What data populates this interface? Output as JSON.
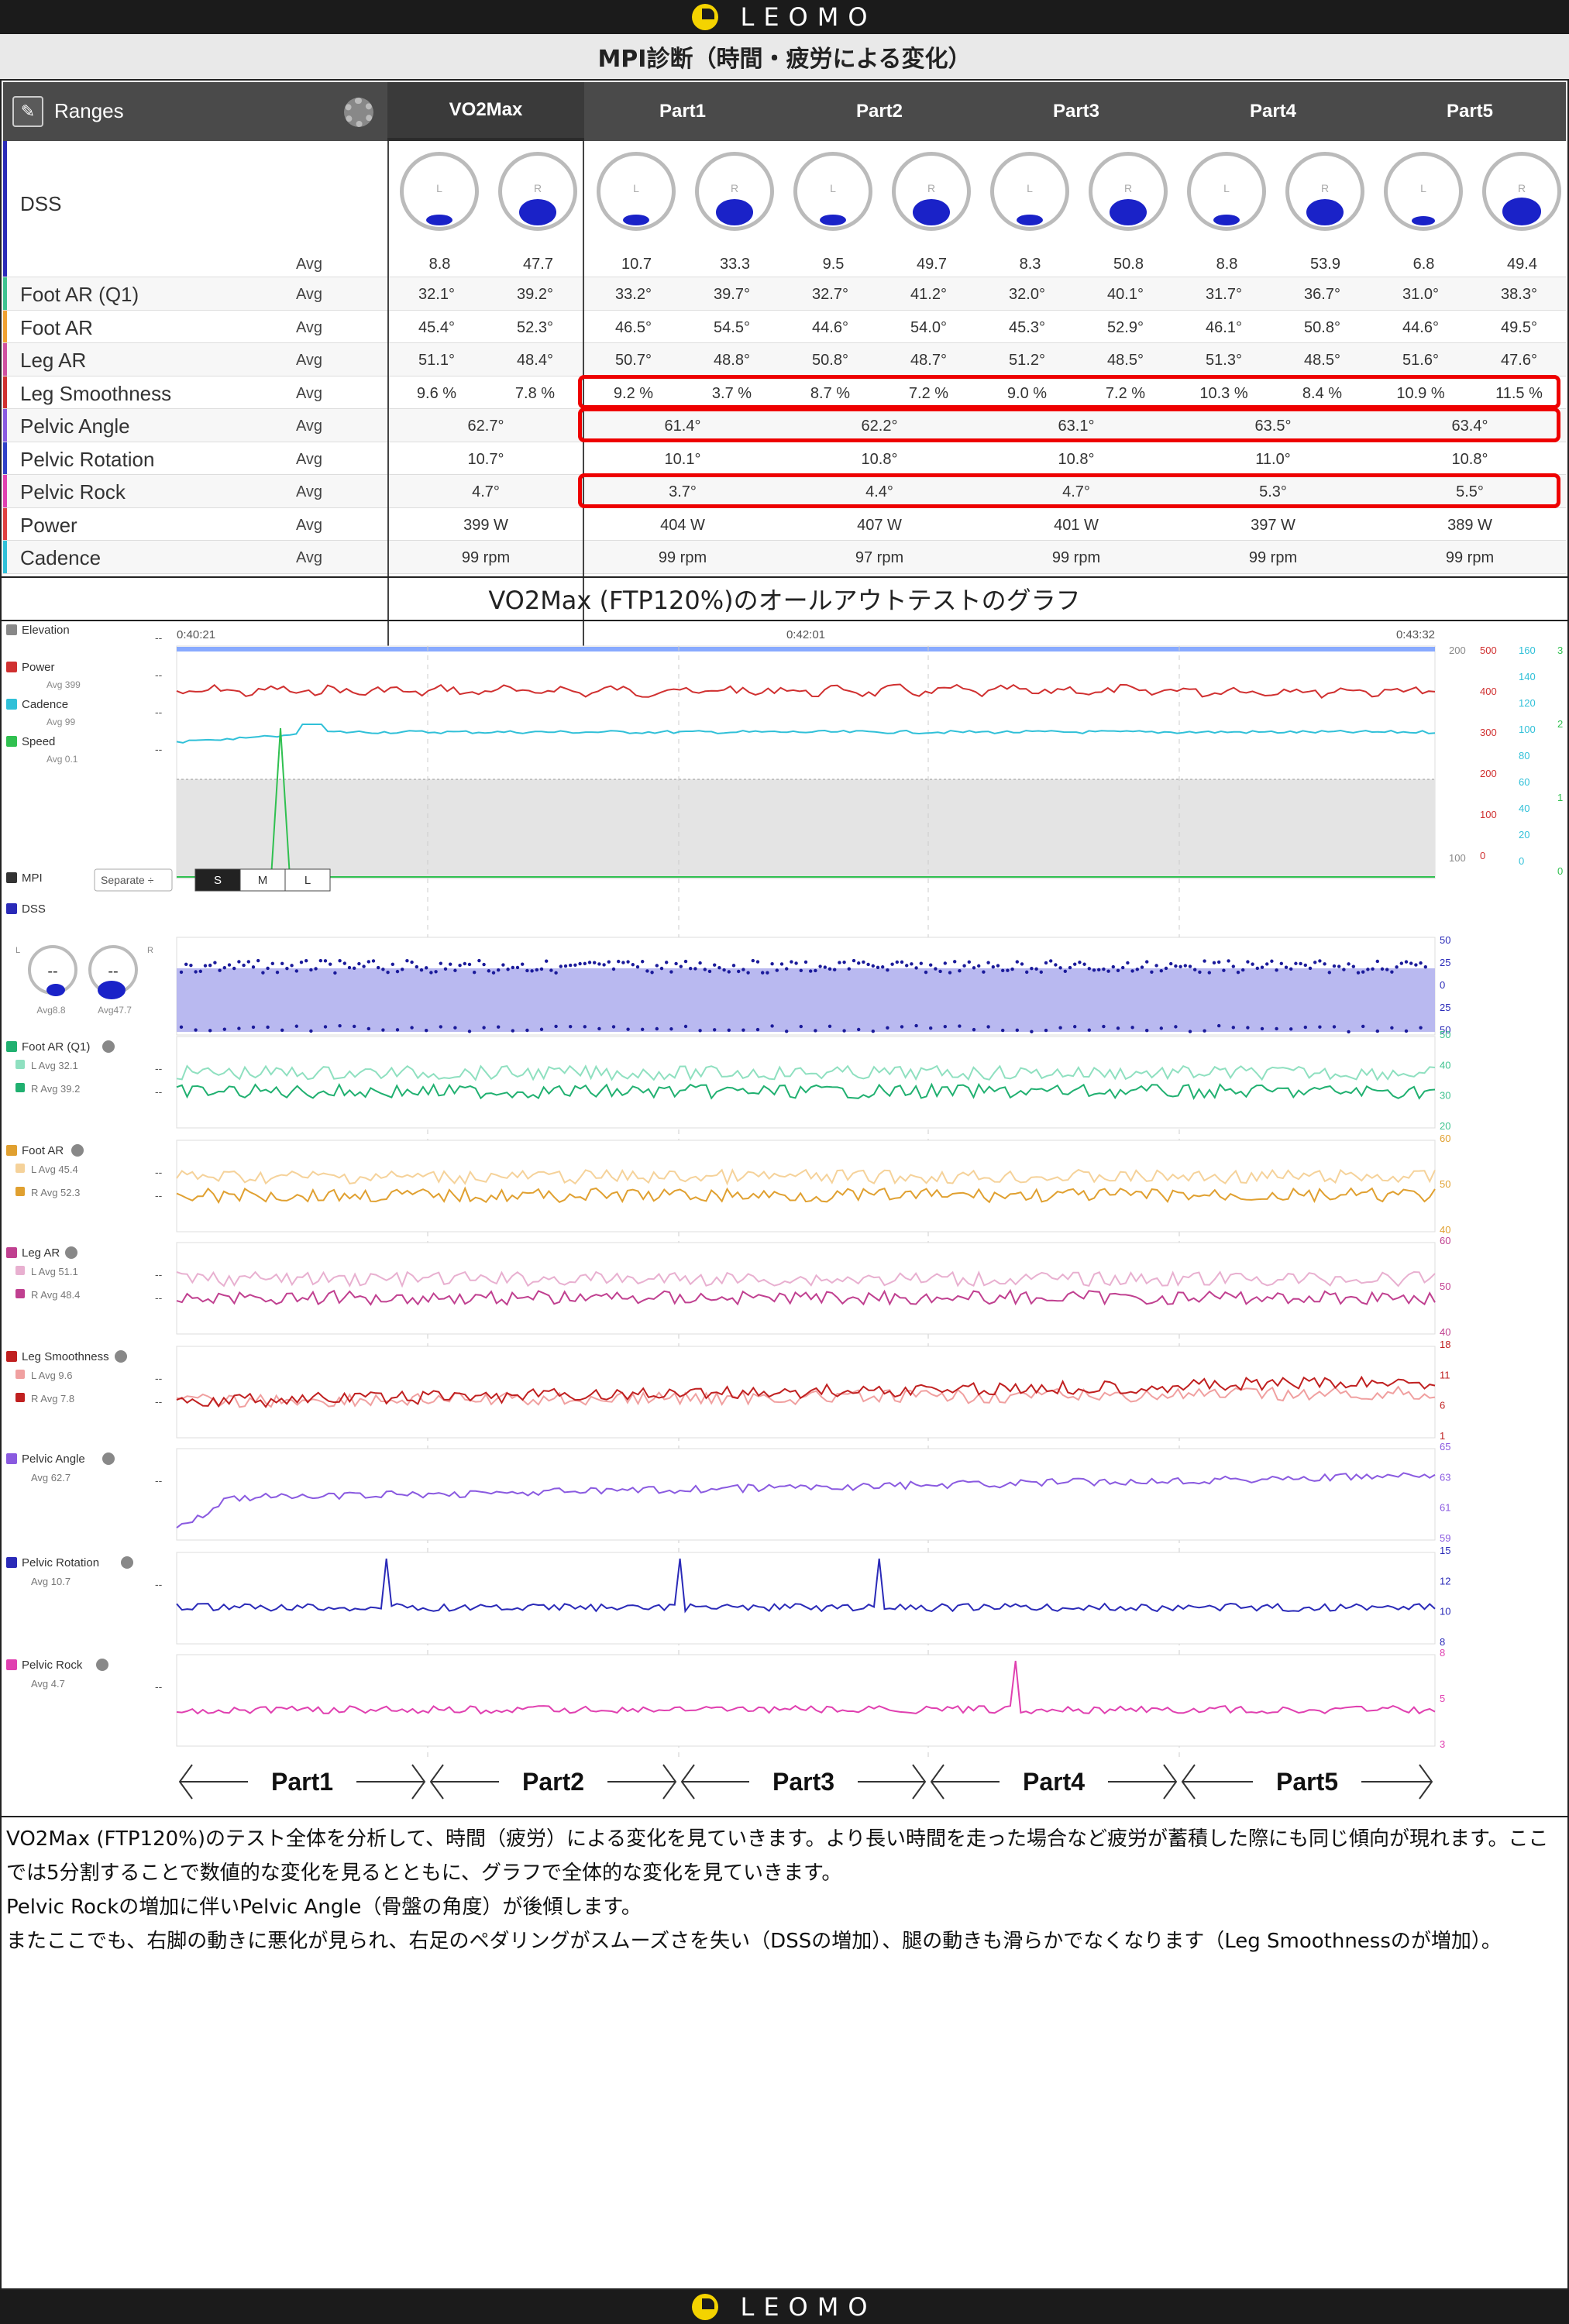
{
  "brand": {
    "name": "LEOMO"
  },
  "title": "MPI診断（時間・疲労による変化）",
  "table": {
    "ranges_label": "Ranges",
    "columns": [
      "VO2Max",
      "Part1",
      "Part2",
      "Part3",
      "Part4",
      "Part5"
    ],
    "dss": {
      "label": "DSS",
      "avg_label": "Avg",
      "dial_L": "L",
      "dial_R": "R",
      "values": [
        "8.8",
        "47.7",
        "10.7",
        "33.3",
        "9.5",
        "49.7",
        "8.3",
        "50.8",
        "8.8",
        "53.9",
        "6.8",
        "49.4"
      ]
    },
    "rows": [
      {
        "label": "Foot AR (Q1)",
        "avg": "Avg",
        "color": "#3ec28f",
        "values": [
          "32.1°",
          "39.2°",
          "33.2°",
          "39.7°",
          "32.7°",
          "41.2°",
          "32.0°",
          "40.1°",
          "31.7°",
          "36.7°",
          "31.0°",
          "38.3°"
        ]
      },
      {
        "label": "Foot AR",
        "avg": "Avg",
        "color": "#f0a030",
        "values": [
          "45.4°",
          "52.3°",
          "46.5°",
          "54.5°",
          "44.6°",
          "54.0°",
          "45.3°",
          "52.9°",
          "46.1°",
          "50.8°",
          "44.6°",
          "49.5°"
        ]
      },
      {
        "label": "Leg AR",
        "avg": "Avg",
        "color": "#d050a0",
        "values": [
          "51.1°",
          "48.4°",
          "50.7°",
          "48.8°",
          "50.8°",
          "48.7°",
          "51.2°",
          "48.5°",
          "51.3°",
          "48.5°",
          "51.6°",
          "47.6°"
        ]
      },
      {
        "label": "Leg Smoothness",
        "avg": "Avg",
        "color": "#d03030",
        "values": [
          "9.6 %",
          "7.8 %",
          "9.2 %",
          "3.7 %",
          "8.7 %",
          "7.2 %",
          "9.0 %",
          "7.2 %",
          "10.3 %",
          "8.4 %",
          "10.9 %",
          "11.5 %"
        ]
      },
      {
        "label": "Pelvic Angle",
        "avg": "Avg",
        "color": "#8a5ae0",
        "values": [
          "62.7°",
          "61.4°",
          "62.2°",
          "63.1°",
          "63.5°",
          "63.4°"
        ]
      },
      {
        "label": "Pelvic Rotation",
        "avg": "Avg",
        "color": "#3040c8",
        "values": [
          "10.7°",
          "10.1°",
          "10.8°",
          "10.8°",
          "11.0°",
          "10.8°"
        ]
      },
      {
        "label": "Pelvic Rock",
        "avg": "Avg",
        "color": "#e040b0",
        "values": [
          "4.7°",
          "3.7°",
          "4.4°",
          "4.7°",
          "5.3°",
          "5.5°"
        ]
      },
      {
        "label": "Power",
        "avg": "Avg",
        "color": "#e04040",
        "values": [
          "399 W",
          "404 W",
          "407 W",
          "401 W",
          "397 W",
          "389 W"
        ]
      },
      {
        "label": "Cadence",
        "avg": "Avg",
        "color": "#30c0d8",
        "values": [
          "99 rpm",
          "99 rpm",
          "97 rpm",
          "99 rpm",
          "99 rpm",
          "99 rpm"
        ]
      }
    ]
  },
  "graph_title": "VO2Max (FTP120%)のオールアウトテストのグラフ",
  "graph": {
    "times": [
      "0:40:21",
      "0:42:01",
      "0:43:32"
    ],
    "top_legend": [
      {
        "label": "Elevation",
        "color": "#888",
        "sub": ""
      },
      {
        "label": "Power",
        "color": "#d03030",
        "sub": "Avg 399"
      },
      {
        "label": "Cadence",
        "color": "#30c0d8",
        "sub": "Avg 99"
      },
      {
        "label": "Speed",
        "color": "#30c050",
        "sub": "Avg 0.1"
      }
    ],
    "axes": {
      "elev": [
        "200",
        "100"
      ],
      "power": [
        "500",
        "400",
        "300",
        "200",
        "100",
        "0"
      ],
      "cadence": [
        "160",
        "140",
        "120",
        "100",
        "80",
        "60",
        "40",
        "20",
        "0"
      ],
      "speed": [
        "3",
        "2",
        "1",
        "0"
      ]
    },
    "mpi": {
      "label": "MPI",
      "select": "Separate ÷",
      "sizes": [
        "S",
        "M",
        "L"
      ]
    },
    "dss": {
      "label": "DSS",
      "avgL": "Avg8.8",
      "avgR": "Avg47.7",
      "L": "L",
      "R": "R",
      "axis": [
        "50",
        "25",
        "0",
        "25",
        "50"
      ],
      "dash": "--"
    },
    "panels": [
      {
        "label": "Foot AR (Q1)",
        "subs": [
          "L Avg 32.1",
          "R Avg 39.2"
        ],
        "colors": [
          "#8fe0c0",
          "#20b070"
        ],
        "axis": [
          "50",
          "40",
          "30",
          "20"
        ],
        "axisColor": "#3ec28f"
      },
      {
        "label": "Foot AR",
        "subs": [
          "L Avg 45.4",
          "R Avg 52.3"
        ],
        "colors": [
          "#f5d29a",
          "#e0a030"
        ],
        "axis": [
          "60",
          "50",
          "40"
        ],
        "axisColor": "#e0a030"
      },
      {
        "label": "Leg AR",
        "subs": [
          "L Avg 51.1",
          "R Avg 48.4"
        ],
        "colors": [
          "#e8b0d0",
          "#c04090"
        ],
        "axis": [
          "60",
          "50",
          "40"
        ],
        "axisColor": "#c04090"
      },
      {
        "label": "Leg Smoothness",
        "subs": [
          "L Avg 9.6",
          "R Avg 7.8"
        ],
        "colors": [
          "#f0a0a0",
          "#c02020"
        ],
        "axis": [
          "18",
          "11",
          "6",
          "1"
        ],
        "axisColor": "#c02020"
      },
      {
        "label": "Pelvic Angle",
        "subs": [
          "Avg 62.7"
        ],
        "colors": [
          "#8a5ae0"
        ],
        "axis": [
          "65",
          "63",
          "61",
          "59"
        ],
        "axisColor": "#8a5ae0"
      },
      {
        "label": "Pelvic Rotation",
        "subs": [
          "Avg 10.7"
        ],
        "colors": [
          "#2a2ab8"
        ],
        "axis": [
          "15",
          "12",
          "10",
          "8"
        ],
        "axisColor": "#2a2ab8"
      },
      {
        "label": "Pelvic Rock",
        "subs": [
          "Avg 4.7"
        ],
        "colors": [
          "#e040b0"
        ],
        "axis": [
          "8",
          "5",
          "3"
        ],
        "axisColor": "#e040b0"
      }
    ],
    "parts": [
      "Part1",
      "Part2",
      "Part3",
      "Part4",
      "Part5"
    ],
    "dash": "--"
  },
  "paragraphs": [
    "VO2Max (FTP120%)のテスト全体を分析して、時間（疲労）による変化を見ていきます。より長い時間を走った場合など疲労が蓄積した際にも同じ傾向が現れます。ここでは5分割することで数値的な変化を見るとともに、グラフで全体的な変化を見ていきます。",
    "Pelvic Rockの増加に伴いPelvic Angle（骨盤の角度）が後傾します。",
    "またここでも、右脚の動きに悪化が見られ、右足のペダリングがスムーズさを失い（DSSの増加）、腿の動きも滑らかでなくなります（Leg Smoothnessのが増加）。"
  ]
}
